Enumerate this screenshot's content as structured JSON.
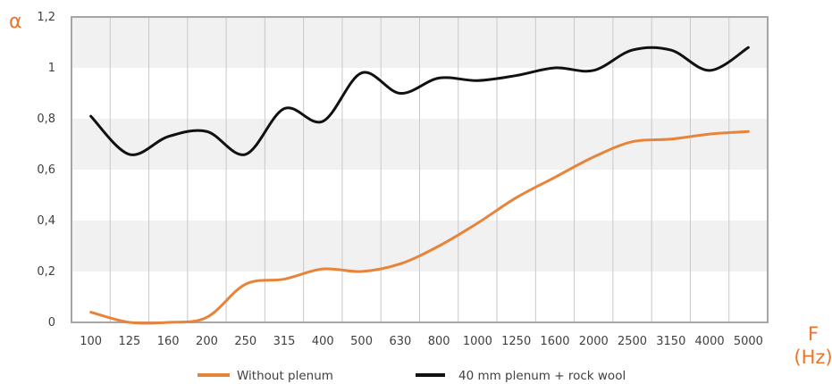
{
  "colors": {
    "accent": "#e8762c",
    "orange_series": "#e8833a",
    "black_series": "#111111",
    "frame": "#a6a6a6",
    "grid": "#c8c8c8",
    "band": "#f1f1f1",
    "tick_text": "#404040"
  },
  "chart_data": {
    "type": "line",
    "title": "",
    "ylabel": "α",
    "xlabel_line1": "F",
    "xlabel_line2": "(Hz)",
    "x": [
      "100",
      "125",
      "160",
      "200",
      "250",
      "315",
      "400",
      "500",
      "630",
      "800",
      "1000",
      "1250",
      "1600",
      "2000",
      "2500",
      "3150",
      "4000",
      "5000"
    ],
    "ylim": [
      0,
      1.2
    ],
    "yticks": [
      "0",
      "0,2",
      "0,4",
      "0,6",
      "0,8",
      "1",
      "1,2"
    ],
    "grid": true,
    "legend_position": "bottom-center",
    "series": [
      {
        "name": "Without plenum",
        "values": [
          0.04,
          0.0,
          0.0,
          0.02,
          0.15,
          0.17,
          0.21,
          0.2,
          0.23,
          0.3,
          0.39,
          0.49,
          0.57,
          0.65,
          0.71,
          0.72,
          0.74,
          0.75
        ]
      },
      {
        "name": "40 mm plenum + rock wool",
        "values": [
          0.81,
          0.66,
          0.73,
          0.75,
          0.66,
          0.84,
          0.79,
          0.98,
          0.9,
          0.96,
          0.95,
          0.97,
          1.0,
          0.99,
          1.07,
          1.07,
          0.99,
          1.08
        ]
      }
    ]
  }
}
